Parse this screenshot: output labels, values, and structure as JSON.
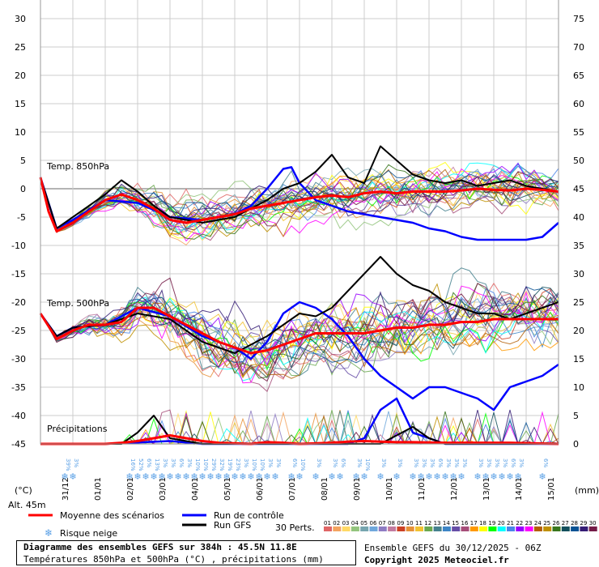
{
  "chart_data": {
    "type": "line",
    "title": "Diagramme des ensembles GEFS sur 384h : 45.5N 11.8E",
    "subtitle": "Températures 850hPa et 500hPa (°C) , précipitations (mm)",
    "yaxis_left": {
      "label": "(°C)",
      "ticks": [
        30,
        25,
        20,
        15,
        10,
        5,
        0,
        -5,
        -10,
        -15,
        -20,
        -25,
        -30,
        -35,
        -40,
        -45
      ]
    },
    "yaxis_right": {
      "label": "(mm)",
      "ticks": [
        75,
        70,
        65,
        60,
        55,
        50,
        45,
        40,
        35,
        30,
        25,
        20,
        15,
        10,
        5,
        0
      ]
    },
    "dates": [
      "31/12",
      "01/01",
      "02/01",
      "03/01",
      "04/01",
      "05/01",
      "06/01",
      "07/01",
      "08/01",
      "09/01",
      "10/01",
      "11/01",
      "12/01",
      "13/01",
      "14/01",
      "15/01"
    ],
    "panels": [
      {
        "name": "Temp. 850hPa",
        "mean": [
          [
            0,
            2
          ],
          [
            6,
            -4
          ],
          [
            12,
            -7.5
          ],
          [
            24,
            -6
          ],
          [
            36,
            -4
          ],
          [
            48,
            -2
          ],
          [
            60,
            -1
          ],
          [
            72,
            -2
          ],
          [
            84,
            -3.5
          ],
          [
            96,
            -5.5
          ],
          [
            108,
            -6
          ],
          [
            120,
            -5.5
          ],
          [
            132,
            -5
          ],
          [
            144,
            -4.5
          ],
          [
            156,
            -3.5
          ],
          [
            168,
            -3
          ],
          [
            180,
            -2.5
          ],
          [
            192,
            -2
          ],
          [
            204,
            -1.5
          ],
          [
            216,
            -1.2
          ],
          [
            228,
            -1.5
          ],
          [
            240,
            -0.8
          ],
          [
            252,
            -0.5
          ],
          [
            264,
            -0.8
          ],
          [
            276,
            -0.5
          ],
          [
            288,
            -0.5
          ],
          [
            300,
            -0.5
          ],
          [
            312,
            -0.3
          ],
          [
            324,
            0
          ],
          [
            336,
            -0.2
          ],
          [
            348,
            -0.3
          ],
          [
            360,
            0
          ],
          [
            372,
            -0.2
          ],
          [
            384,
            -0.5
          ]
        ],
        "control": [
          [
            0,
            2
          ],
          [
            12,
            -7
          ],
          [
            24,
            -5.5
          ],
          [
            48,
            -2
          ],
          [
            72,
            -2.5
          ],
          [
            96,
            -5
          ],
          [
            120,
            -5.5
          ],
          [
            144,
            -4.5
          ],
          [
            156,
            -3
          ],
          [
            168,
            0
          ],
          [
            180,
            3.5
          ],
          [
            186,
            3.8
          ],
          [
            192,
            1
          ],
          [
            204,
            -2
          ],
          [
            216,
            -3
          ],
          [
            228,
            -4
          ],
          [
            240,
            -4.5
          ],
          [
            252,
            -5
          ],
          [
            264,
            -5.5
          ],
          [
            276,
            -6
          ],
          [
            288,
            -7
          ],
          [
            300,
            -7.5
          ],
          [
            312,
            -8.5
          ],
          [
            324,
            -9
          ],
          [
            336,
            -9
          ],
          [
            348,
            -9
          ],
          [
            360,
            -9
          ],
          [
            372,
            -8.5
          ],
          [
            384,
            -6
          ]
        ],
        "gfs": [
          [
            0,
            2
          ],
          [
            12,
            -7
          ],
          [
            24,
            -5
          ],
          [
            48,
            -1
          ],
          [
            60,
            1.5
          ],
          [
            72,
            -0.5
          ],
          [
            84,
            -3
          ],
          [
            96,
            -5
          ],
          [
            120,
            -6
          ],
          [
            144,
            -5
          ],
          [
            168,
            -2
          ],
          [
            180,
            0
          ],
          [
            192,
            1
          ],
          [
            204,
            3
          ],
          [
            216,
            6
          ],
          [
            228,
            2
          ],
          [
            240,
            1
          ],
          [
            252,
            7.5
          ],
          [
            264,
            5
          ],
          [
            276,
            2.5
          ],
          [
            288,
            1.5
          ],
          [
            300,
            1
          ],
          [
            312,
            1.5
          ],
          [
            324,
            0.5
          ],
          [
            336,
            1
          ],
          [
            348,
            1.5
          ],
          [
            360,
            0.5
          ],
          [
            372,
            0
          ],
          [
            384,
            -0.5
          ]
        ]
      },
      {
        "name": "Temp. 500hPa",
        "mean": [
          [
            0,
            -22
          ],
          [
            12,
            -26.5
          ],
          [
            24,
            -25
          ],
          [
            36,
            -24
          ],
          [
            48,
            -24
          ],
          [
            60,
            -23.5
          ],
          [
            72,
            -21
          ],
          [
            84,
            -21
          ],
          [
            96,
            -22.5
          ],
          [
            108,
            -24
          ],
          [
            120,
            -25.5
          ],
          [
            132,
            -27
          ],
          [
            144,
            -28
          ],
          [
            156,
            -29
          ],
          [
            168,
            -28.5
          ],
          [
            180,
            -27.5
          ],
          [
            192,
            -26.5
          ],
          [
            204,
            -25.5
          ],
          [
            216,
            -25.5
          ],
          [
            228,
            -25.5
          ],
          [
            240,
            -25.5
          ],
          [
            252,
            -25
          ],
          [
            264,
            -24.5
          ],
          [
            276,
            -24.5
          ],
          [
            288,
            -24
          ],
          [
            300,
            -24
          ],
          [
            312,
            -23.5
          ],
          [
            324,
            -23.5
          ],
          [
            336,
            -23
          ],
          [
            348,
            -23
          ],
          [
            360,
            -23
          ],
          [
            372,
            -23
          ],
          [
            384,
            -23
          ]
        ],
        "control": [
          [
            0,
            -22
          ],
          [
            12,
            -26
          ],
          [
            24,
            -24.5
          ],
          [
            48,
            -24
          ],
          [
            72,
            -21
          ],
          [
            96,
            -22.5
          ],
          [
            120,
            -26
          ],
          [
            144,
            -28
          ],
          [
            156,
            -30
          ],
          [
            168,
            -27
          ],
          [
            180,
            -22
          ],
          [
            192,
            -20
          ],
          [
            204,
            -21
          ],
          [
            216,
            -23
          ],
          [
            228,
            -26
          ],
          [
            240,
            -30
          ],
          [
            252,
            -33
          ],
          [
            264,
            -35
          ],
          [
            276,
            -37
          ],
          [
            288,
            -35
          ],
          [
            300,
            -35
          ],
          [
            312,
            -36
          ],
          [
            324,
            -37
          ],
          [
            336,
            -39
          ],
          [
            348,
            -35
          ],
          [
            360,
            -34
          ],
          [
            372,
            -33
          ],
          [
            384,
            -31
          ]
        ],
        "gfs": [
          [
            0,
            -22
          ],
          [
            12,
            -26
          ],
          [
            24,
            -24.5
          ],
          [
            48,
            -24
          ],
          [
            72,
            -22
          ],
          [
            96,
            -23
          ],
          [
            120,
            -27
          ],
          [
            144,
            -29
          ],
          [
            168,
            -26
          ],
          [
            180,
            -24
          ],
          [
            192,
            -22
          ],
          [
            204,
            -22.5
          ],
          [
            216,
            -21
          ],
          [
            228,
            -18
          ],
          [
            240,
            -15
          ],
          [
            252,
            -12
          ],
          [
            264,
            -15
          ],
          [
            276,
            -17
          ],
          [
            288,
            -18
          ],
          [
            300,
            -20
          ],
          [
            312,
            -21
          ],
          [
            324,
            -22
          ],
          [
            336,
            -22
          ],
          [
            348,
            -23
          ],
          [
            360,
            -22
          ],
          [
            372,
            -21
          ],
          [
            384,
            -20
          ]
        ]
      },
      {
        "name": "Précipitations",
        "mean": [
          [
            0,
            0
          ],
          [
            24,
            0
          ],
          [
            48,
            0
          ],
          [
            60,
            0.2
          ],
          [
            72,
            0.5
          ],
          [
            84,
            1
          ],
          [
            96,
            1.5
          ],
          [
            108,
            1
          ],
          [
            120,
            0.5
          ],
          [
            132,
            0.2
          ],
          [
            156,
            0
          ],
          [
            168,
            0.3
          ],
          [
            180,
            0.2
          ],
          [
            192,
            0
          ],
          [
            216,
            0.2
          ],
          [
            228,
            0.4
          ],
          [
            240,
            0.5
          ],
          [
            252,
            0.4
          ],
          [
            264,
            0.3
          ],
          [
            276,
            0.3
          ],
          [
            300,
            0.2
          ],
          [
            324,
            0.2
          ],
          [
            348,
            0.2
          ],
          [
            384,
            0
          ]
        ],
        "control": [
          [
            0,
            0
          ],
          [
            24,
            0
          ],
          [
            48,
            0
          ],
          [
            96,
            0.5
          ],
          [
            120,
            0
          ],
          [
            168,
            0
          ],
          [
            228,
            0
          ],
          [
            240,
            1
          ],
          [
            252,
            6
          ],
          [
            264,
            8
          ],
          [
            276,
            2
          ],
          [
            300,
            0
          ],
          [
            384,
            0
          ]
        ],
        "gfs": [
          [
            0,
            0
          ],
          [
            48,
            0
          ],
          [
            60,
            0
          ],
          [
            72,
            2
          ],
          [
            84,
            5
          ],
          [
            96,
            1
          ],
          [
            120,
            0
          ],
          [
            252,
            0
          ],
          [
            276,
            3
          ],
          [
            288,
            1
          ],
          [
            300,
            0
          ],
          [
            384,
            0
          ]
        ]
      }
    ],
    "members_count": 30,
    "snow_risk": [
      {
        "h": 18,
        "pct": "39%"
      },
      {
        "h": 24,
        "pct": "3%"
      },
      {
        "h": 66,
        "pct": "16%"
      },
      {
        "h": 72,
        "pct": "52%"
      },
      {
        "h": 78,
        "pct": "6%"
      },
      {
        "h": 84,
        "pct": "13%"
      },
      {
        "h": 90,
        "pct": "3%"
      },
      {
        "h": 96,
        "pct": "3%"
      },
      {
        "h": 102,
        "pct": "6%"
      },
      {
        "h": 108,
        "pct": "3%"
      },
      {
        "h": 114,
        "pct": "10%"
      },
      {
        "h": 120,
        "pct": "10%"
      },
      {
        "h": 126,
        "pct": "29%"
      },
      {
        "h": 132,
        "pct": "32%"
      },
      {
        "h": 138,
        "pct": "19%"
      },
      {
        "h": 144,
        "pct": "23%"
      },
      {
        "h": 150,
        "pct": "3%"
      },
      {
        "h": 156,
        "pct": "10%"
      },
      {
        "h": 162,
        "pct": "10%"
      },
      {
        "h": 168,
        "pct": "3%"
      },
      {
        "h": 174,
        "pct": "3%"
      },
      {
        "h": 186,
        "pct": "6%"
      },
      {
        "h": 192,
        "pct": "10%"
      },
      {
        "h": 204,
        "pct": "3%"
      },
      {
        "h": 216,
        "pct": "3%"
      },
      {
        "h": 222,
        "pct": "6%"
      },
      {
        "h": 234,
        "pct": "3%"
      },
      {
        "h": 240,
        "pct": "10%"
      },
      {
        "h": 252,
        "pct": "3%"
      },
      {
        "h": 264,
        "pct": "3%"
      },
      {
        "h": 276,
        "pct": "3%"
      },
      {
        "h": 282,
        "pct": "3%"
      },
      {
        "h": 288,
        "pct": "3%"
      },
      {
        "h": 294,
        "pct": "6%"
      },
      {
        "h": 300,
        "pct": "3%"
      },
      {
        "h": 306,
        "pct": "3%"
      },
      {
        "h": 312,
        "pct": "3%"
      },
      {
        "h": 324,
        "pct": "3%"
      },
      {
        "h": 330,
        "pct": "3%"
      },
      {
        "h": 336,
        "pct": "3%"
      },
      {
        "h": 342,
        "pct": "3%"
      },
      {
        "h": 348,
        "pct": "6%"
      },
      {
        "h": 354,
        "pct": "3%"
      },
      {
        "h": 372,
        "pct": "6%"
      }
    ]
  },
  "legend": {
    "alt": "Alt. 45m",
    "mean": "Moyenne des scénarios",
    "control": "Run de contrôle",
    "gfs": "Run GFS",
    "snow": "Risque neige",
    "perts": "30 Perts.",
    "member_numbers": [
      "01",
      "02",
      "03",
      "04",
      "05",
      "06",
      "07",
      "08",
      "09",
      "10",
      "11",
      "12",
      "13",
      "14",
      "15",
      "16",
      "17",
      "18",
      "19",
      "20",
      "21",
      "22",
      "23",
      "24",
      "25",
      "26",
      "27",
      "28",
      "29",
      "30"
    ],
    "member_colors": [
      "#e06666",
      "#f4a460",
      "#ffd966",
      "#93c47d",
      "#76a5af",
      "#6fa8dc",
      "#8e7cc3",
      "#c27ba0",
      "#cc4125",
      "#e69138",
      "#f1c232",
      "#6aa84f",
      "#45818e",
      "#3d85c6",
      "#674ea7",
      "#a64d79",
      "#ff9900",
      "#ffff00",
      "#00ff00",
      "#00ffff",
      "#4a86e8",
      "#9900ff",
      "#ff00ff",
      "#b45f06",
      "#bf9000",
      "#38761d",
      "#134f5c",
      "#0b5394",
      "#351c75",
      "#741b47"
    ]
  },
  "footer": {
    "title": "Diagramme des ensembles GEFS sur 384h : 45.5N 11.8E",
    "subtitle": "Températures 850hPa et 500hPa (°C) , précipitations (mm)",
    "run": "Ensemble GEFS du 30/12/2025 - 06Z",
    "copyright": "Copyright 2025 Meteociel.fr"
  },
  "colors": {
    "mean": "#ff0000",
    "control": "#0000ff",
    "gfs": "#000000",
    "snow": "#5aa0e6"
  }
}
